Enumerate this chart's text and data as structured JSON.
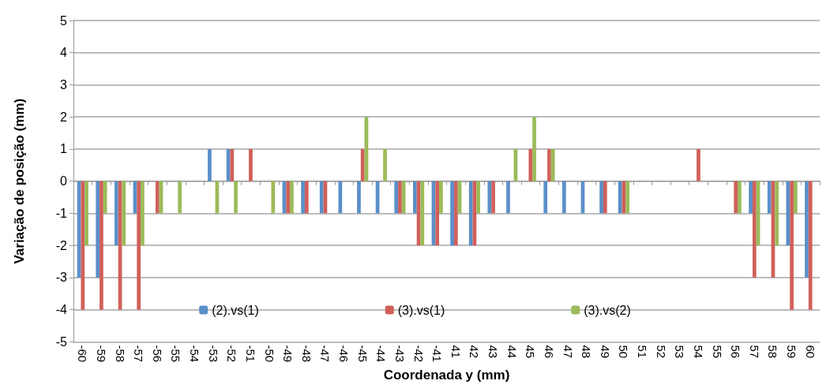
{
  "chart_data": {
    "type": "bar",
    "xlabel": "Coordenada y (mm)",
    "ylabel": "Variação de posição (mm)",
    "categories": [
      "-60",
      "-59",
      "-58",
      "-57",
      "-56",
      "-55",
      "-54",
      "-53",
      "-52",
      "-51",
      "-50",
      "-49",
      "-48",
      "-47",
      "-46",
      "-45",
      "-44",
      "-43",
      "-42",
      "-41",
      "41",
      "42",
      "43",
      "44",
      "45",
      "46",
      "47",
      "48",
      "49",
      "50",
      "51",
      "52",
      "53",
      "54",
      "55",
      "56",
      "57",
      "58",
      "59",
      "60"
    ],
    "series": [
      {
        "name": "(2).vs(1)",
        "color": "#5b8fc9",
        "values": [
          -3,
          -3,
          -2,
          -1,
          0,
          0,
          0,
          1,
          1,
          0,
          0,
          -1,
          -1,
          -1,
          -1,
          -1,
          -1,
          -1,
          -1,
          -2,
          -2,
          -2,
          -1,
          -1,
          0,
          -1,
          -1,
          -1,
          -1,
          -1,
          0,
          0,
          0,
          0,
          0,
          0,
          -1,
          -1,
          -2,
          -3
        ]
      },
      {
        "name": "(3).vs(1)",
        "color": "#d0605a",
        "values": [
          -4,
          -4,
          -4,
          -4,
          -1,
          0,
          0,
          0,
          1,
          1,
          0,
          -1,
          -1,
          -1,
          0,
          1,
          0,
          -1,
          -2,
          -2,
          -2,
          -2,
          -1,
          0,
          1,
          1,
          0,
          0,
          -1,
          -1,
          0,
          0,
          0,
          1,
          0,
          -1,
          -3,
          -3,
          -4,
          -4
        ]
      },
      {
        "name": "(3).vs(2)",
        "color": "#9bbb59",
        "values": [
          -2,
          -1,
          -2,
          -2,
          -1,
          -1,
          0,
          -1,
          -1,
          0,
          -1,
          -1,
          0,
          0,
          0,
          2,
          1,
          -1,
          -2,
          -1,
          -1,
          -1,
          0,
          1,
          2,
          1,
          0,
          0,
          0,
          -1,
          0,
          0,
          0,
          0,
          0,
          -1,
          -2,
          -2,
          -1,
          0
        ]
      }
    ],
    "ylim": [
      -5,
      5
    ],
    "yticks": [
      -5,
      -4,
      -3,
      -2,
      -1,
      0,
      1,
      2,
      3,
      4,
      5
    ],
    "grid": "y",
    "legend": "bottom"
  }
}
